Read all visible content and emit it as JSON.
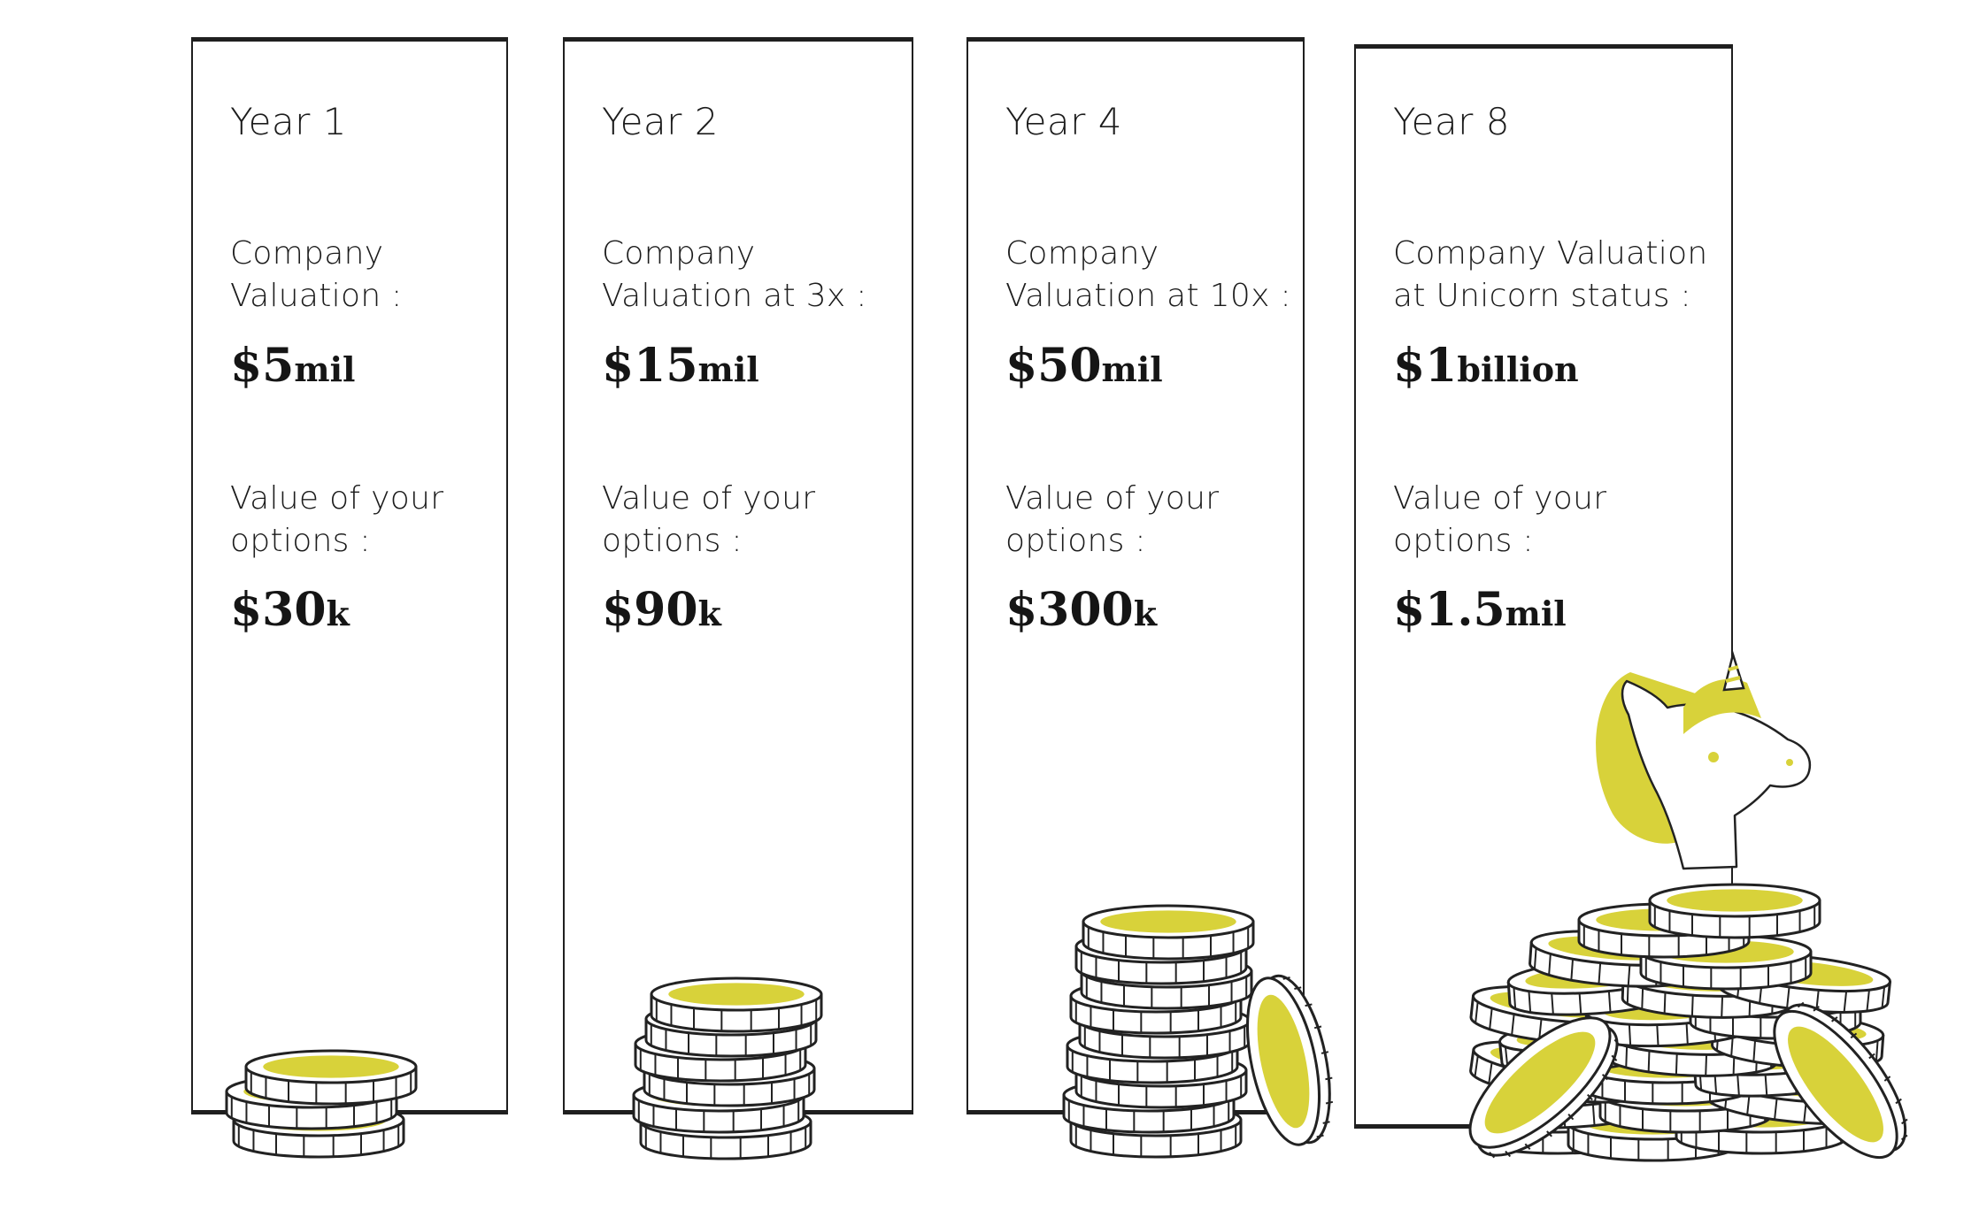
{
  "cards": [
    {
      "year": "Year 1",
      "valuation_label": [
        "Company",
        "Valuation :"
      ],
      "valuation_number": "$5",
      "valuation_unit": "mil",
      "options_label": [
        "Value of your",
        "options :"
      ],
      "options_number": "$30",
      "options_unit": "k"
    },
    {
      "year": "Year 2",
      "valuation_label": [
        "Company",
        "Valuation at 3x :"
      ],
      "valuation_number": "$15",
      "valuation_unit": "mil",
      "options_label": [
        "Value of your",
        "options :"
      ],
      "options_number": "$90",
      "options_unit": "k"
    },
    {
      "year": "Year 4",
      "valuation_label": [
        "Company",
        "Valuation at 10x :"
      ],
      "valuation_number": "$50",
      "valuation_unit": "mil",
      "options_label": [
        "Value of your",
        "options :"
      ],
      "options_number": "$300",
      "options_unit": "k"
    },
    {
      "year": "Year 8",
      "valuation_label": [
        "Company Valuation",
        "at Unicorn status :"
      ],
      "valuation_number": "$1",
      "valuation_unit": "billion",
      "options_label": [
        "Value of your",
        "options :"
      ],
      "options_number": "$1.5",
      "options_unit": "mil"
    }
  ],
  "illustrations": {
    "coin_color": "#d8d23a",
    "outline_color": "#222222",
    "year_1": "small-coin-stack",
    "year_2": "medium-coin-stack",
    "year_4": "tall-coin-stack",
    "year_8": "unicorn-on-coin-pile"
  }
}
